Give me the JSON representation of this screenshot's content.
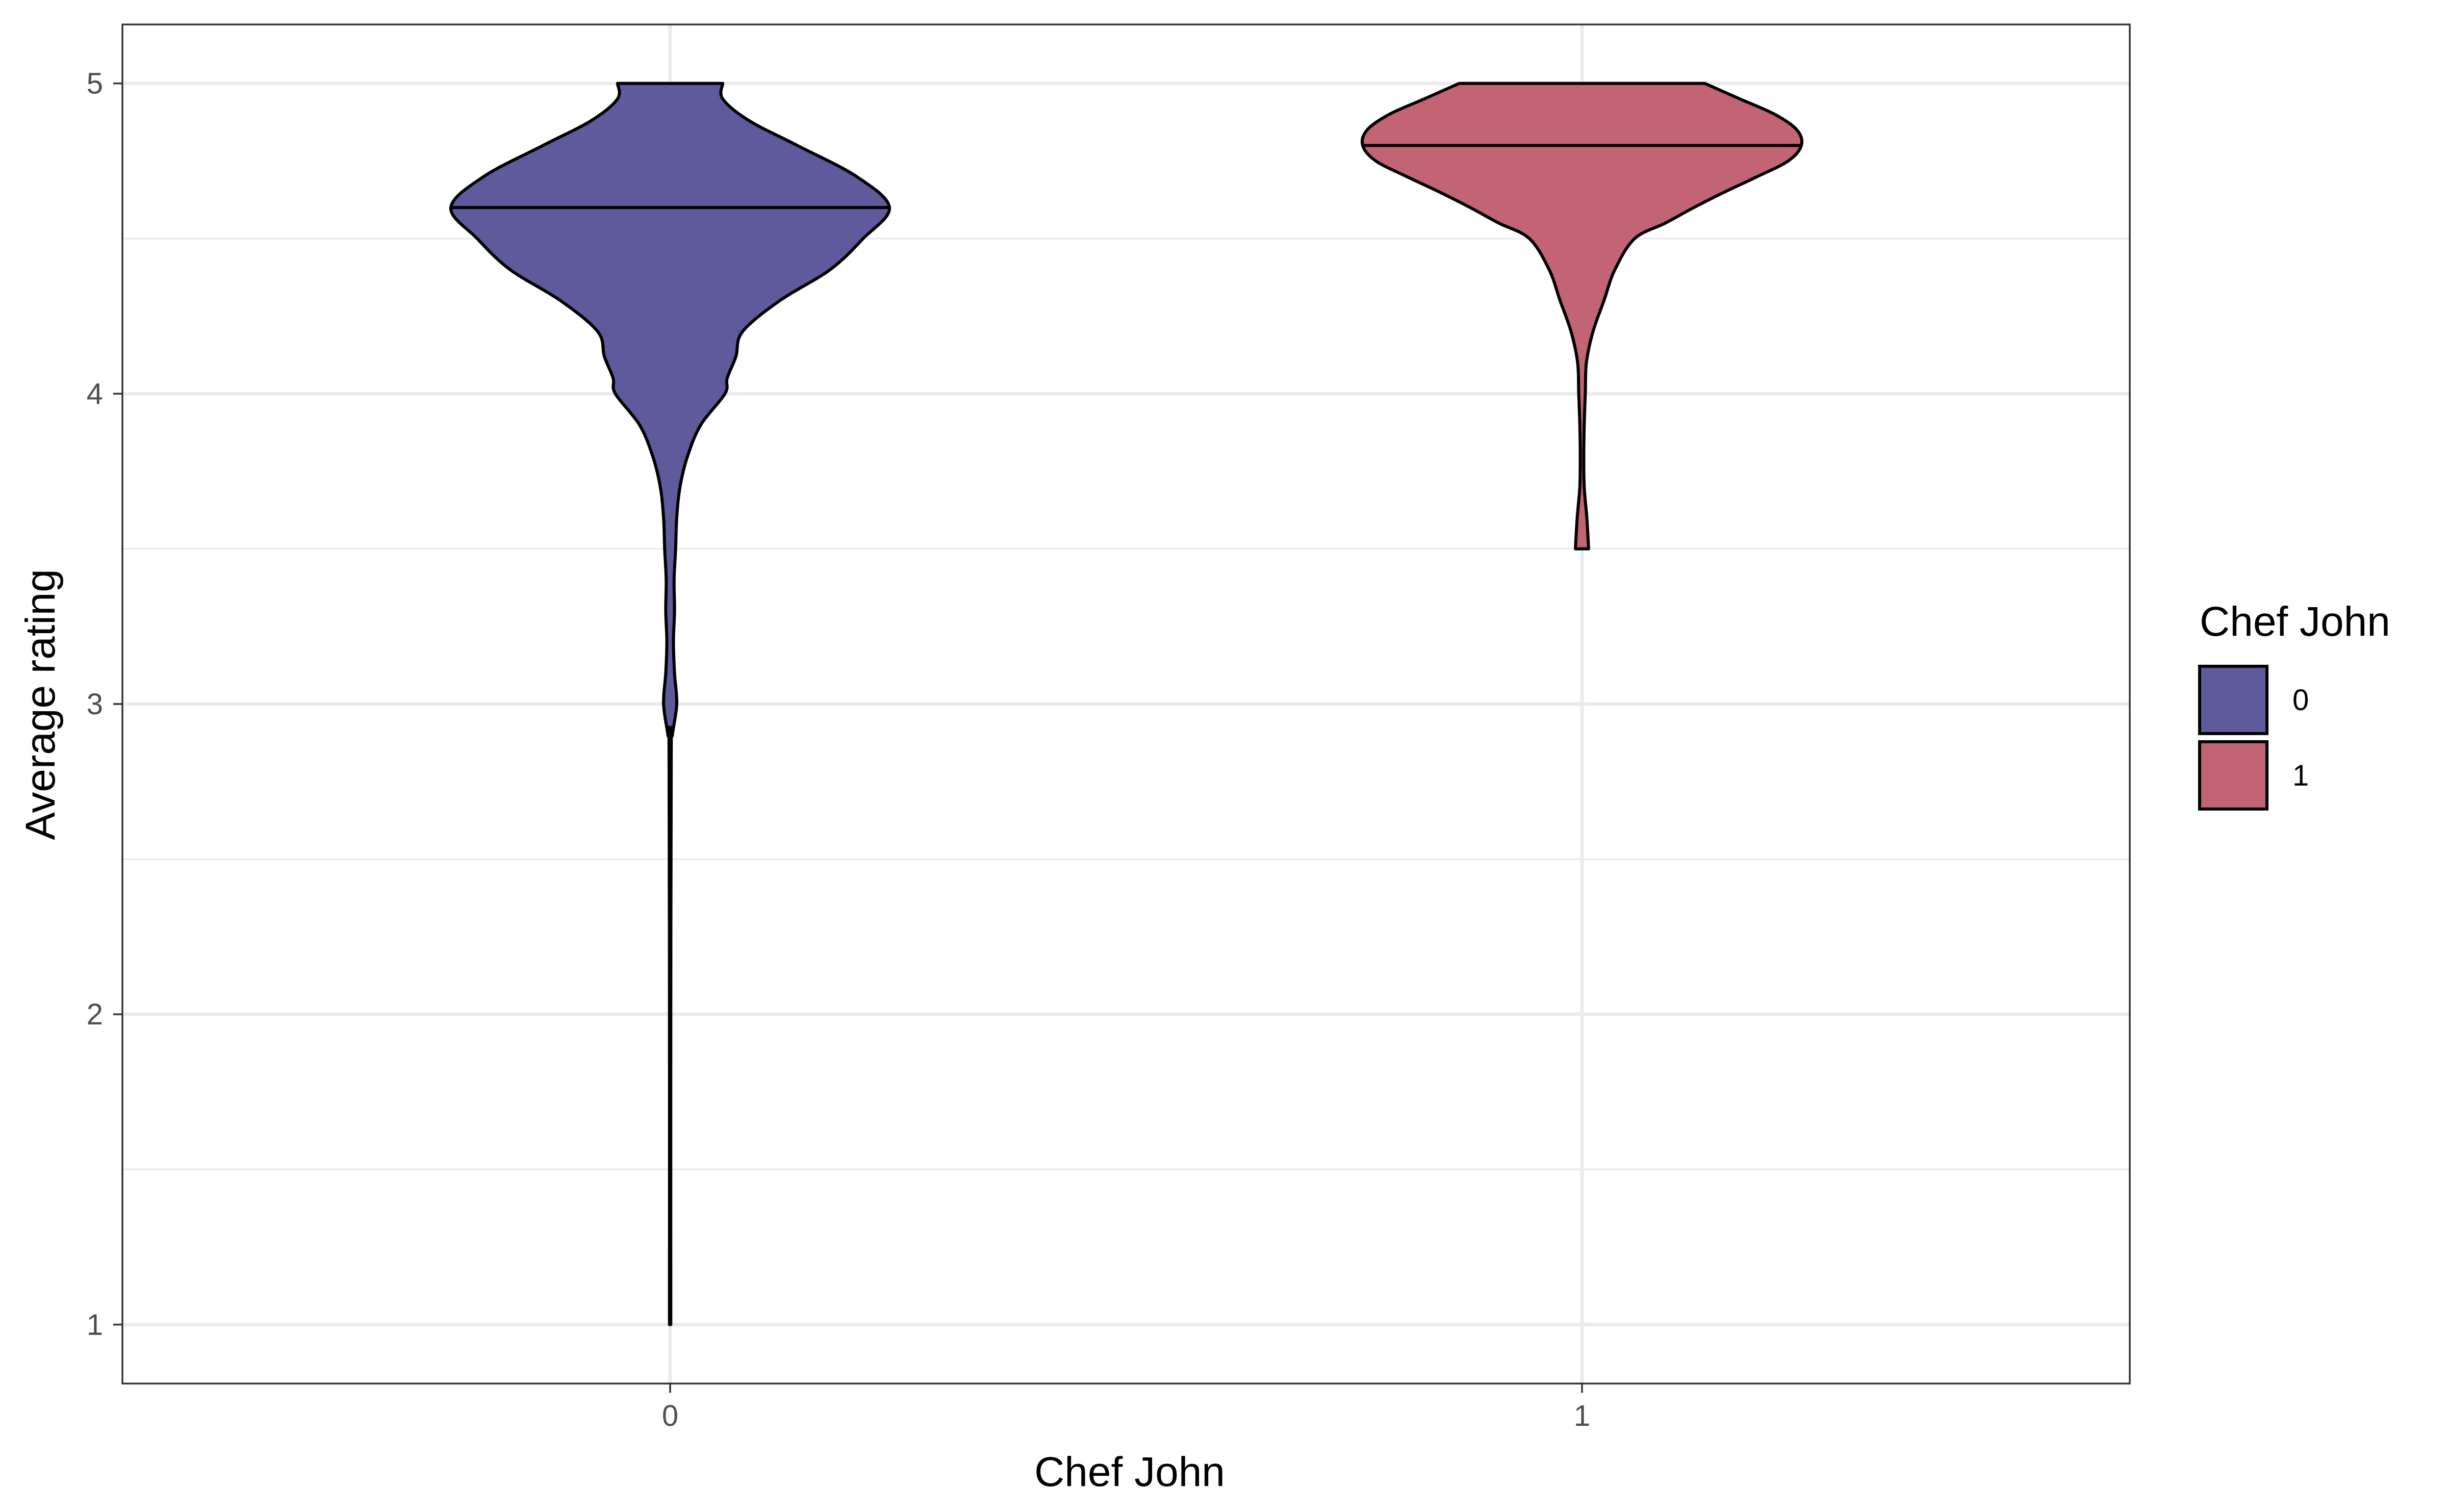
{
  "chart_data": {
    "type": "violin",
    "xlabel": "Chef John",
    "ylabel": "Average rating",
    "ylim": [
      0.81,
      5.19
    ],
    "yticks": [
      1,
      2,
      3,
      4,
      5
    ],
    "categories": [
      "0",
      "1"
    ],
    "grid": true,
    "legend": {
      "title": "Chef John",
      "position": "right",
      "items": [
        {
          "label": "0",
          "color": "#5e5a9c"
        },
        {
          "label": "1",
          "color": "#c26474"
        }
      ]
    },
    "series": [
      {
        "category": "0",
        "color": "#5e5a9c",
        "median": 4.6,
        "range": [
          1.0,
          5.0
        ],
        "density_profile": [
          {
            "y": 5.0,
            "w": 0.24
          },
          {
            "y": 4.95,
            "w": 0.24
          },
          {
            "y": 4.88,
            "w": 0.36
          },
          {
            "y": 4.8,
            "w": 0.58
          },
          {
            "y": 4.7,
            "w": 0.85
          },
          {
            "y": 4.6,
            "w": 1.0
          },
          {
            "y": 4.5,
            "w": 0.88
          },
          {
            "y": 4.4,
            "w": 0.73
          },
          {
            "y": 4.3,
            "w": 0.5
          },
          {
            "y": 4.2,
            "w": 0.33
          },
          {
            "y": 4.12,
            "w": 0.3
          },
          {
            "y": 4.05,
            "w": 0.26
          },
          {
            "y": 4.0,
            "w": 0.25
          },
          {
            "y": 3.9,
            "w": 0.14
          },
          {
            "y": 3.8,
            "w": 0.08
          },
          {
            "y": 3.7,
            "w": 0.045
          },
          {
            "y": 3.6,
            "w": 0.03
          },
          {
            "y": 3.5,
            "w": 0.025
          },
          {
            "y": 3.4,
            "w": 0.018
          },
          {
            "y": 3.3,
            "w": 0.02
          },
          {
            "y": 3.2,
            "w": 0.015
          },
          {
            "y": 3.1,
            "w": 0.02
          },
          {
            "y": 3.0,
            "w": 0.03
          },
          {
            "y": 2.9,
            "w": 0.01
          },
          {
            "y": 2.85,
            "w": 0.005
          },
          {
            "y": 2.0,
            "w": 0.003
          },
          {
            "y": 1.0,
            "w": 0.003
          }
        ]
      },
      {
        "category": "1",
        "color": "#c26474",
        "median": 4.8,
        "range": [
          3.5,
          5.0
        ],
        "density_profile": [
          {
            "y": 5.0,
            "w": 0.56
          },
          {
            "y": 4.95,
            "w": 0.72
          },
          {
            "y": 4.9,
            "w": 0.88
          },
          {
            "y": 4.85,
            "w": 0.98
          },
          {
            "y": 4.8,
            "w": 1.0
          },
          {
            "y": 4.75,
            "w": 0.94
          },
          {
            "y": 4.7,
            "w": 0.8
          },
          {
            "y": 4.65,
            "w": 0.65
          },
          {
            "y": 4.6,
            "w": 0.51
          },
          {
            "y": 4.55,
            "w": 0.38
          },
          {
            "y": 4.5,
            "w": 0.24
          },
          {
            "y": 4.4,
            "w": 0.15
          },
          {
            "y": 4.3,
            "w": 0.1
          },
          {
            "y": 4.2,
            "w": 0.05
          },
          {
            "y": 4.1,
            "w": 0.02
          },
          {
            "y": 4.0,
            "w": 0.015
          },
          {
            "y": 3.9,
            "w": 0.01
          },
          {
            "y": 3.8,
            "w": 0.008
          },
          {
            "y": 3.7,
            "w": 0.01
          },
          {
            "y": 3.6,
            "w": 0.022
          },
          {
            "y": 3.5,
            "w": 0.03
          }
        ]
      }
    ]
  }
}
